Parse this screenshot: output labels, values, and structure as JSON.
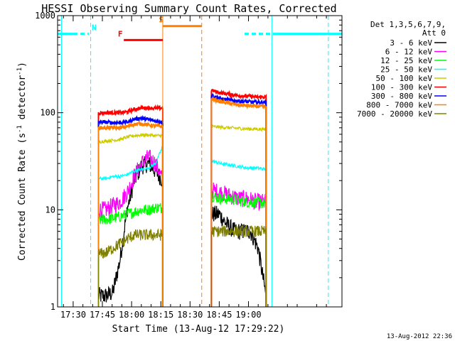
{
  "chart_data": {
    "type": "line",
    "title": "HESSI Observing Summary Count Rates, Corrected",
    "xlabel": "Start Time (13-Aug-12 17:29:22)",
    "ylabel_main": "Corrected Count Rate (s",
    "ylabel_sup1": "-1",
    "ylabel_mid": " detector",
    "ylabel_sup2": "-1",
    "ylabel_end": ")",
    "y_scale": "log",
    "ylim": [
      1,
      1000
    ],
    "y_ticks": [
      {
        "value": 1,
        "label": "1"
      },
      {
        "value": 10,
        "label": "10"
      },
      {
        "value": 100,
        "label": "100"
      },
      {
        "value": 1000,
        "label": "1000"
      }
    ],
    "xlim_min": [
      -8,
      138
    ],
    "x_ticks": [
      {
        "value": 0,
        "label": "17:30"
      },
      {
        "value": 15,
        "label": "17:45"
      },
      {
        "value": 30,
        "label": "18:00"
      },
      {
        "value": 45,
        "label": "18:15"
      },
      {
        "value": 60,
        "label": "18:30"
      },
      {
        "value": 75,
        "label": "18:45"
      },
      {
        "value": 90,
        "label": "19:00"
      }
    ],
    "legend_position": "right",
    "legend_header": [
      "Det 1,3,5,6,7,9,",
      "Att 0"
    ],
    "series": [
      {
        "name": "3 - 6 keV",
        "color": "#000000"
      },
      {
        "name": "6 - 12 keV",
        "color": "#ff00ff"
      },
      {
        "name": "12 - 25 keV",
        "color": "#00ff00"
      },
      {
        "name": "25 - 50 keV",
        "color": "#00ffff"
      },
      {
        "name": "50 - 100 keV",
        "color": "#cccc00"
      },
      {
        "name": "100 - 300 keV",
        "color": "#ff0000"
      },
      {
        "name": "300 - 800 keV",
        "color": "#0000ff"
      },
      {
        "name": "800 - 7000 keV",
        "color": "#ff8000"
      },
      {
        "name": "7000 - 20000 keV",
        "color": "#808000"
      }
    ],
    "segments": [
      {
        "start": 13,
        "end": 46
      },
      {
        "start": 71,
        "end": 99
      }
    ],
    "segment_levels": [
      {
        "s1": [
          1.3,
          1.3,
          1.4,
          3.0,
          10,
          20,
          28,
          30,
          25,
          20
        ],
        "s2": [
          9,
          9,
          7,
          6,
          6,
          6,
          4,
          1.3
        ]
      },
      {
        "s1": [
          10,
          10,
          11,
          12,
          15,
          22,
          30,
          35,
          30,
          20
        ],
        "s2": [
          16,
          15,
          14,
          13,
          13,
          12,
          12
        ]
      },
      {
        "s1": [
          7.8,
          8,
          8.2,
          8.5,
          9,
          9.5,
          10,
          10,
          10.5,
          10.5
        ],
        "s2": [
          14,
          13,
          13,
          12.5,
          12,
          12,
          11.5
        ]
      },
      {
        "s1": [
          21,
          21,
          22,
          22,
          23,
          25,
          26,
          27,
          30,
          45
        ],
        "s2": [
          32,
          30,
          29,
          28,
          27,
          27,
          26
        ]
      },
      {
        "s1": [
          50,
          51,
          52,
          53,
          56,
          58,
          59,
          59,
          58,
          58
        ],
        "s2": [
          72,
          71,
          70,
          69,
          68,
          68,
          67
        ]
      },
      {
        "s1": [
          99,
          100,
          100,
          100,
          102,
          108,
          112,
          112,
          111,
          112
        ],
        "s2": [
          170,
          160,
          155,
          150,
          148,
          145,
          145
        ]
      },
      {
        "s1": [
          80,
          80,
          79,
          79,
          80,
          86,
          88,
          85,
          82,
          80
        ],
        "s2": [
          150,
          140,
          135,
          132,
          130,
          128,
          128
        ]
      },
      {
        "s1": [
          70,
          70,
          70,
          70,
          72,
          76,
          77,
          75,
          73,
          72
        ],
        "s2": [
          140,
          130,
          125,
          120,
          118,
          116,
          115
        ]
      },
      {
        "s1": [
          3.5,
          3.6,
          4.0,
          4.5,
          5,
          5.5,
          5.5,
          5.5,
          5.5,
          5.5
        ],
        "s2": [
          6,
          6,
          6,
          6,
          6,
          6,
          6
        ]
      }
    ],
    "flags": [
      {
        "label": "N",
        "color": "#00ffff",
        "y": 650,
        "solid": [
          [
            -8,
            0
          ],
          [
            104,
            138
          ]
        ],
        "dashed": [
          [
            0,
            8
          ],
          [
            88,
            104
          ]
        ],
        "solid_lines": [
          -6,
          102
        ],
        "dashed_lines": [
          9,
          131
        ],
        "label_x": 9.5
      },
      {
        "label": "S",
        "color": "#ff8000",
        "y": 780,
        "solid": [
          [
            46,
            66
          ]
        ],
        "solid_lines": [
          46
        ],
        "dashed_lines": [
          66
        ],
        "label_x": 44
      },
      {
        "label": "F",
        "color": "#ff0000",
        "y": 560,
        "solid": [
          [
            26,
            46
          ]
        ],
        "label_x": 23
      }
    ],
    "footer_stamp": "13-Aug-2012 22:36"
  }
}
